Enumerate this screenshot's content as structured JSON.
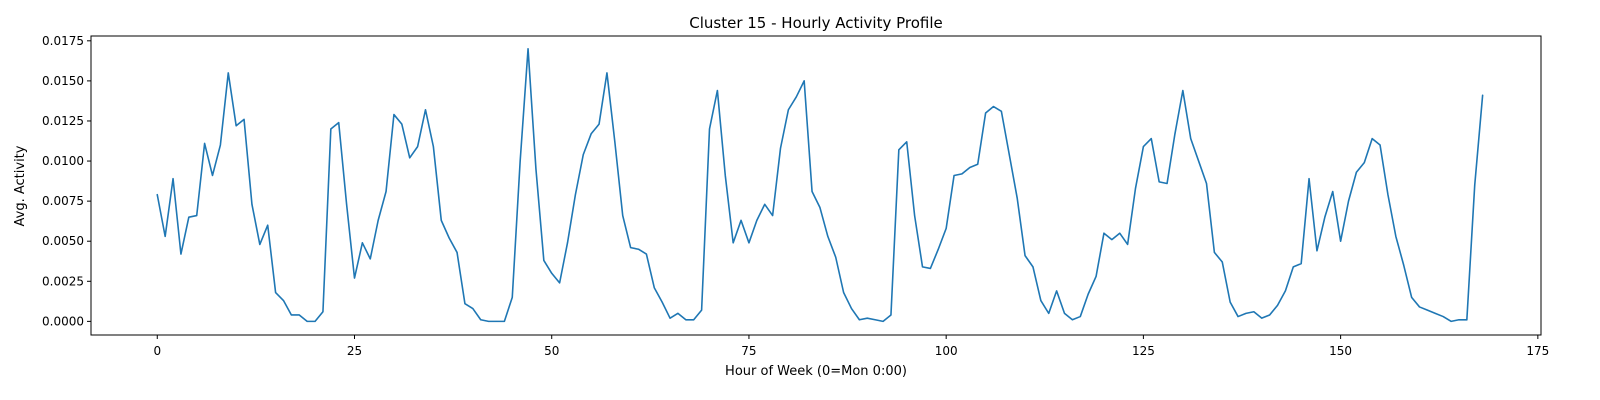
{
  "chart_data": {
    "type": "line",
    "title": "Cluster 15 - Hourly Activity Profile",
    "xlabel": "Hour of Week (0=Mon 0:00)",
    "ylabel": "Avg. Activity",
    "xlim": [
      -8.4,
      175.4
    ],
    "ylim": [
      -0.00085,
      0.0178
    ],
    "xticks": [
      0,
      25,
      50,
      75,
      100,
      125,
      150,
      175
    ],
    "xtick_labels": [
      "0",
      "25",
      "50",
      "75",
      "100",
      "125",
      "150",
      "175"
    ],
    "yticks": [
      0.0,
      0.0025,
      0.005,
      0.0075,
      0.01,
      0.0125,
      0.015,
      0.0175
    ],
    "ytick_labels": [
      "0.0000",
      "0.0025",
      "0.0050",
      "0.0075",
      "0.0100",
      "0.0125",
      "0.0150",
      "0.0175"
    ],
    "grid": false,
    "legend": false,
    "line_color": "#1f77b4",
    "series": [
      {
        "values": [
          0.0079,
          0.0053,
          0.0089,
          0.0042,
          0.0065,
          0.0066,
          0.0111,
          0.0091,
          0.011,
          0.0155,
          0.0122,
          0.0126,
          0.0073,
          0.0048,
          0.006,
          0.0018,
          0.0013,
          0.0004,
          0.0004,
          0.0,
          0.0,
          0.0006,
          0.012,
          0.0124,
          0.0073,
          0.0027,
          0.0049,
          0.0039,
          0.0063,
          0.0081,
          0.0129,
          0.0123,
          0.0102,
          0.0109,
          0.0132,
          0.0109,
          0.0063,
          0.0052,
          0.0043,
          0.0011,
          0.0008,
          0.0001,
          0.0,
          0.0,
          0.0,
          0.0015,
          0.01,
          0.017,
          0.0095,
          0.0038,
          0.003,
          0.0024,
          0.0049,
          0.0079,
          0.0104,
          0.0117,
          0.0123,
          0.0155,
          0.0112,
          0.0066,
          0.0046,
          0.0045,
          0.0042,
          0.0021,
          0.0012,
          0.0002,
          0.0005,
          0.0001,
          0.0001,
          0.0007,
          0.012,
          0.0144,
          0.0091,
          0.0049,
          0.0063,
          0.0049,
          0.0063,
          0.0073,
          0.0066,
          0.0108,
          0.0132,
          0.014,
          0.015,
          0.0081,
          0.0071,
          0.0053,
          0.004,
          0.0018,
          0.0008,
          0.0001,
          0.0002,
          0.0001,
          0.0,
          0.0004,
          0.0107,
          0.0112,
          0.0066,
          0.0034,
          0.0033,
          0.0045,
          0.0058,
          0.0091,
          0.0092,
          0.0096,
          0.0098,
          0.013,
          0.0134,
          0.0131,
          0.0104,
          0.0077,
          0.0041,
          0.0034,
          0.0013,
          0.0005,
          0.0019,
          0.0005,
          0.0001,
          0.0003,
          0.0017,
          0.0028,
          0.0055,
          0.0051,
          0.0055,
          0.0048,
          0.0083,
          0.0109,
          0.0114,
          0.0087,
          0.0086,
          0.0117,
          0.0144,
          0.0114,
          0.01,
          0.0086,
          0.0043,
          0.0037,
          0.0012,
          0.0003,
          0.0005,
          0.0006,
          0.0002,
          0.0004,
          0.001,
          0.0019,
          0.0034,
          0.0036,
          0.0089,
          0.0044,
          0.0065,
          0.0081,
          0.005,
          0.0075,
          0.0093,
          0.0099,
          0.0114,
          0.011,
          0.0079,
          0.0053,
          0.0035,
          0.0015,
          0.0009,
          0.0007,
          0.0005,
          0.0003,
          0.0,
          0.0001,
          0.0001,
          0.0085,
          0.0141
        ]
      }
    ]
  }
}
